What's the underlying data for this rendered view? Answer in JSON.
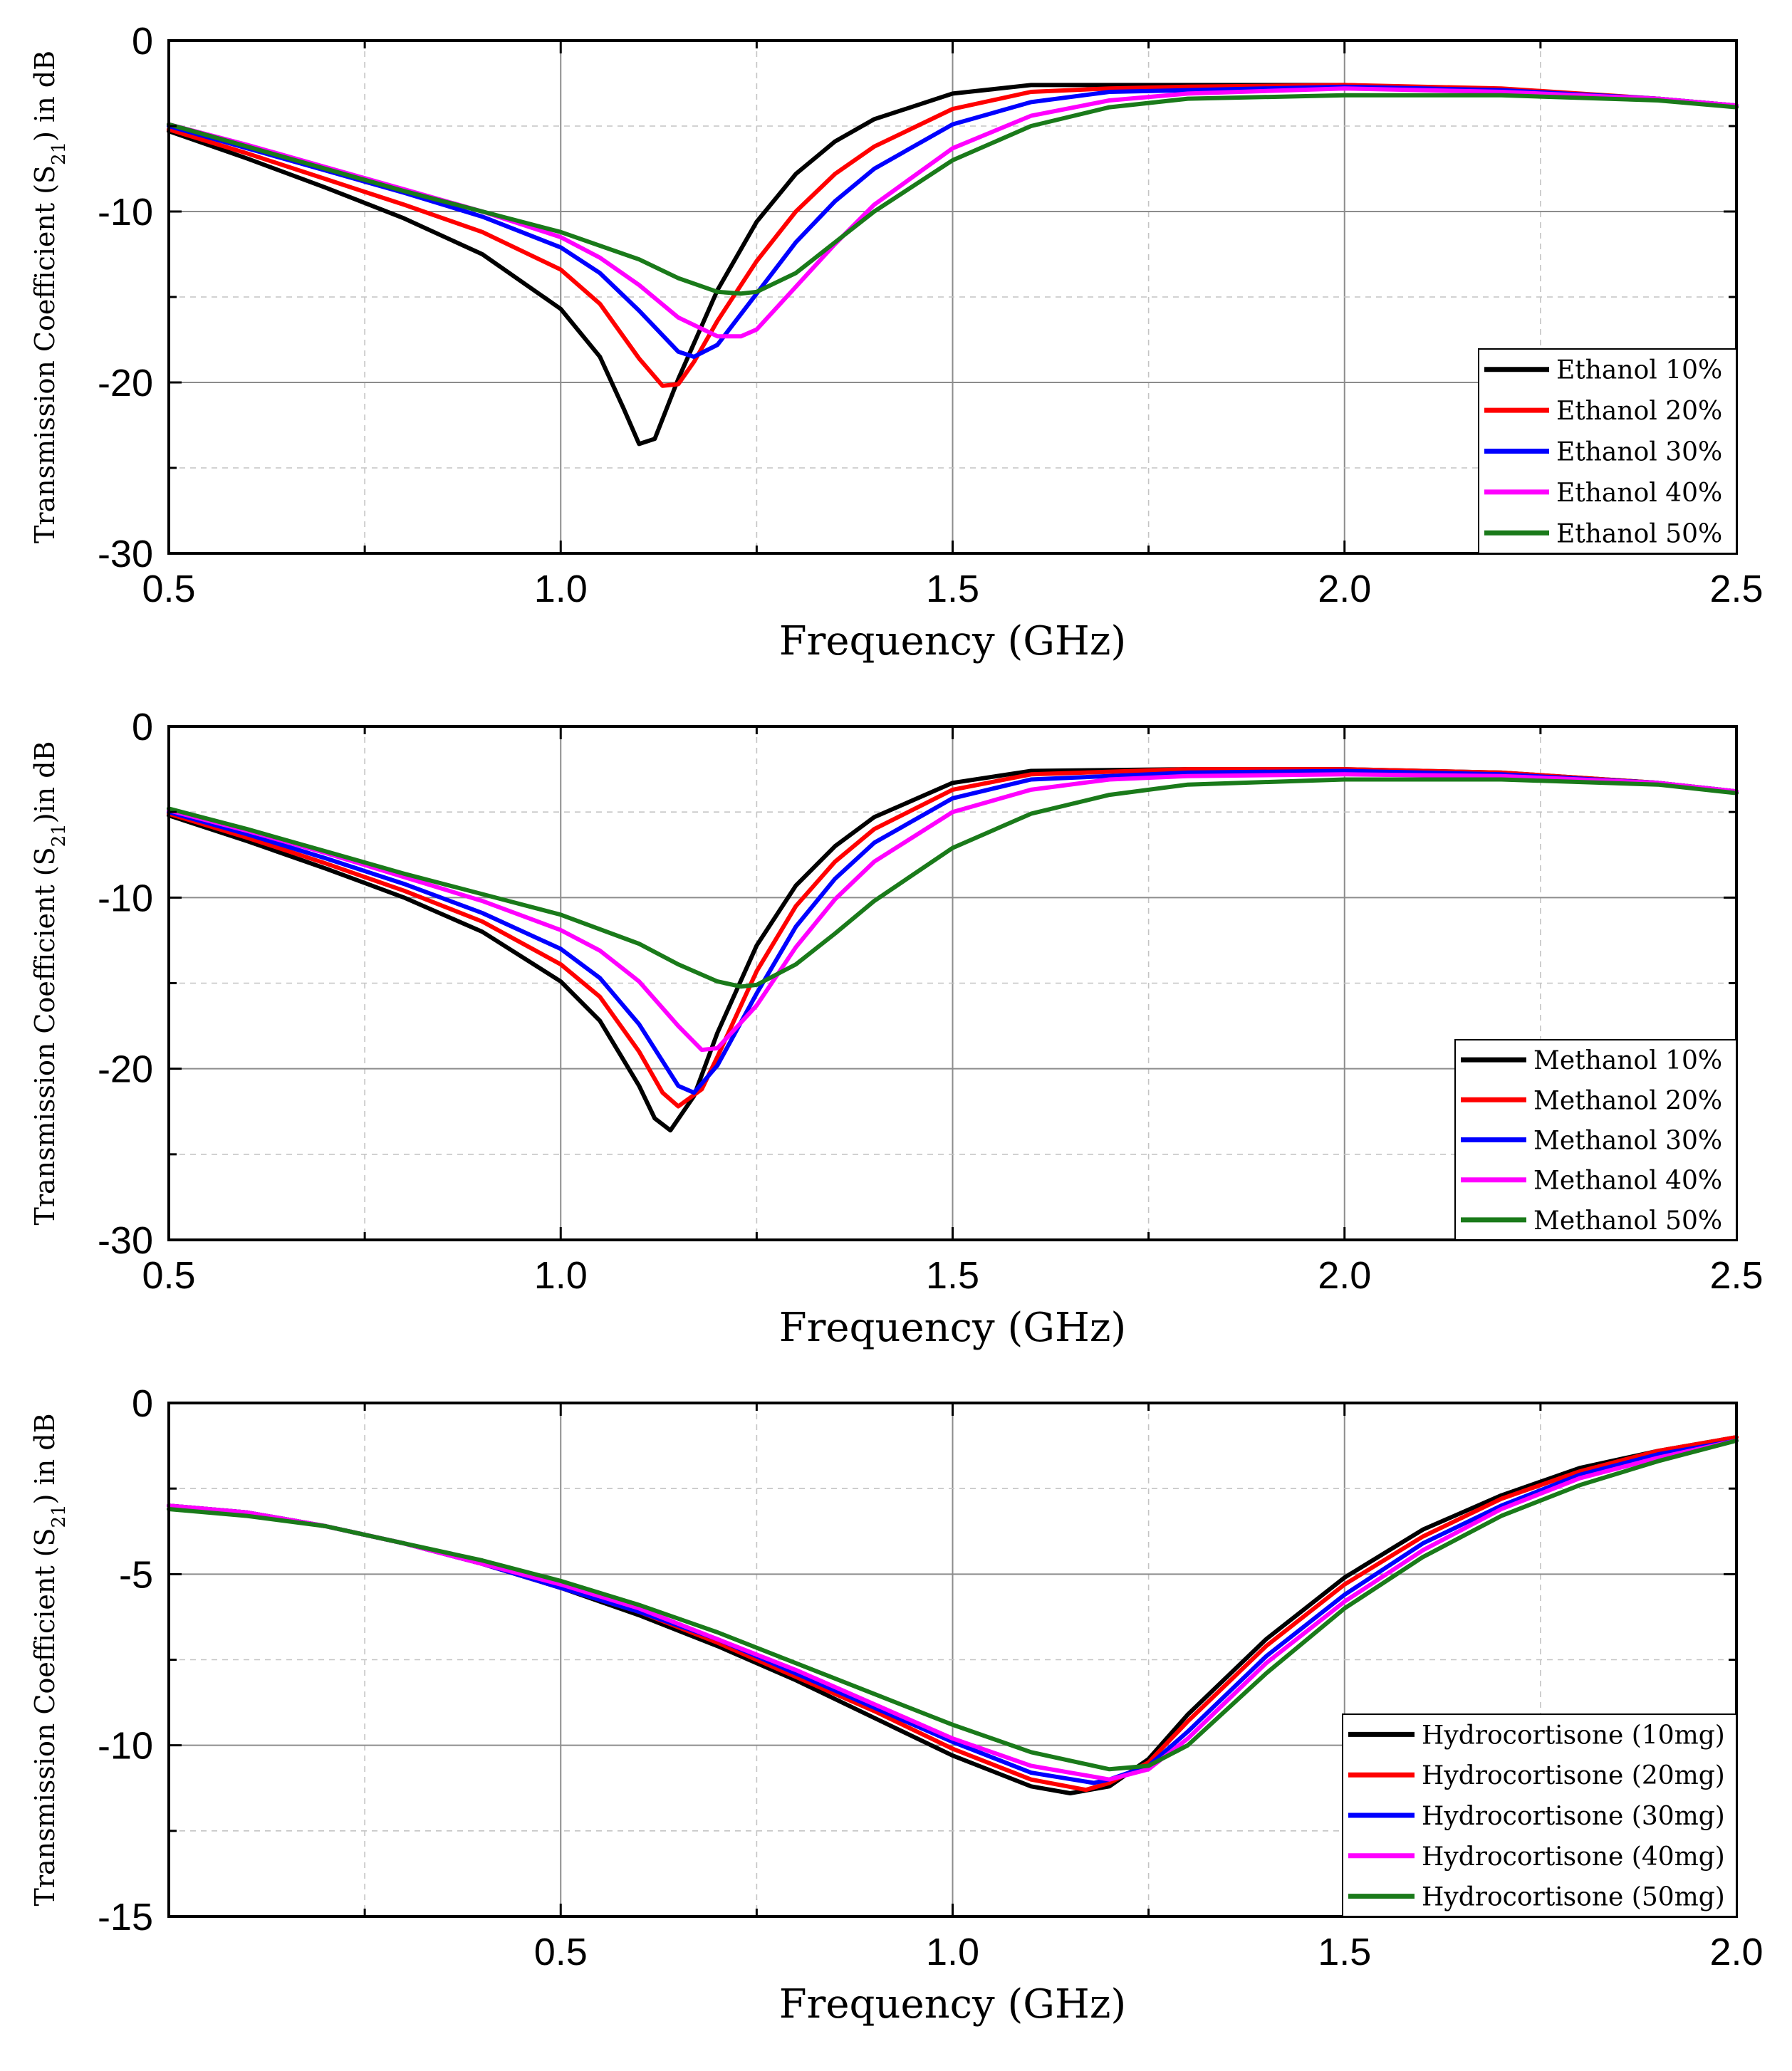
{
  "chart_data": [
    {
      "type": "line",
      "xlabel": "Frequency (GHz)",
      "ylabel_main": "Transmission Coefficient (S",
      "ylabel_sub": "21",
      "ylabel_tail": ") in dB",
      "xlim": [
        0.5,
        2.5
      ],
      "ylim": [
        -30,
        0
      ],
      "xticks": [
        0.5,
        1.0,
        1.5,
        2.0,
        2.5
      ],
      "xtick_labels": [
        "0.5",
        "1.0",
        "1.5",
        "2.0",
        "2.5"
      ],
      "yticks": [
        -30,
        -20,
        -10,
        0
      ],
      "ytick_labels": [
        "-30",
        "-20",
        "-10",
        "0"
      ],
      "legend_position": "bottom-right",
      "grid": true,
      "series": [
        {
          "name": "Ethanol 10%",
          "color": "#000000",
          "x": [
            0.5,
            0.6,
            0.7,
            0.8,
            0.9,
            1.0,
            1.05,
            1.08,
            1.1,
            1.12,
            1.15,
            1.2,
            1.25,
            1.3,
            1.35,
            1.4,
            1.5,
            1.6,
            1.8,
            2.0,
            2.2,
            2.4,
            2.5
          ],
          "y": [
            -5.3,
            -6.9,
            -8.6,
            -10.4,
            -12.5,
            -15.7,
            -18.5,
            -21.5,
            -23.6,
            -23.3,
            -19.8,
            -14.6,
            -10.6,
            -7.8,
            -5.9,
            -4.6,
            -3.1,
            -2.6,
            -2.6,
            -2.6,
            -2.9,
            -3.4,
            -3.8
          ]
        },
        {
          "name": "Ethanol 20%",
          "color": "#ff0000",
          "x": [
            0.5,
            0.6,
            0.7,
            0.8,
            0.9,
            1.0,
            1.05,
            1.1,
            1.13,
            1.15,
            1.17,
            1.2,
            1.25,
            1.3,
            1.35,
            1.4,
            1.5,
            1.6,
            1.7,
            1.8,
            2.0,
            2.2,
            2.4,
            2.5
          ],
          "y": [
            -5.2,
            -6.6,
            -8.1,
            -9.6,
            -11.2,
            -13.4,
            -15.4,
            -18.6,
            -20.2,
            -20.1,
            -18.8,
            -16.4,
            -12.9,
            -10.0,
            -7.8,
            -6.2,
            -4.0,
            -3.0,
            -2.8,
            -2.7,
            -2.6,
            -2.8,
            -3.4,
            -3.8
          ]
        },
        {
          "name": "Ethanol 30%",
          "color": "#0000ff",
          "x": [
            0.5,
            0.6,
            0.7,
            0.8,
            0.9,
            1.0,
            1.05,
            1.1,
            1.15,
            1.17,
            1.2,
            1.25,
            1.3,
            1.35,
            1.4,
            1.5,
            1.6,
            1.7,
            1.8,
            2.0,
            2.2,
            2.4,
            2.5
          ],
          "y": [
            -5.0,
            -6.3,
            -7.6,
            -8.9,
            -10.3,
            -12.1,
            -13.6,
            -15.8,
            -18.2,
            -18.5,
            -17.8,
            -14.8,
            -11.8,
            -9.4,
            -7.5,
            -4.9,
            -3.6,
            -3.0,
            -2.9,
            -2.7,
            -2.9,
            -3.4,
            -3.8
          ]
        },
        {
          "name": "Ethanol 40%",
          "color": "#ff00ff",
          "x": [
            0.5,
            0.6,
            0.7,
            0.8,
            0.9,
            1.0,
            1.05,
            1.1,
            1.15,
            1.2,
            1.23,
            1.25,
            1.3,
            1.35,
            1.4,
            1.5,
            1.6,
            1.7,
            1.8,
            2.0,
            2.2,
            2.4,
            2.5
          ],
          "y": [
            -4.9,
            -6.1,
            -7.4,
            -8.7,
            -10.0,
            -11.5,
            -12.7,
            -14.3,
            -16.2,
            -17.3,
            -17.3,
            -16.9,
            -14.4,
            -11.9,
            -9.6,
            -6.3,
            -4.4,
            -3.5,
            -3.1,
            -2.8,
            -3.0,
            -3.4,
            -3.8
          ]
        },
        {
          "name": "Ethanol 50%",
          "color": "#1a7a1a",
          "x": [
            0.5,
            0.6,
            0.7,
            0.8,
            0.9,
            1.0,
            1.1,
            1.15,
            1.2,
            1.23,
            1.25,
            1.3,
            1.35,
            1.4,
            1.5,
            1.6,
            1.7,
            1.8,
            2.0,
            2.2,
            2.4,
            2.5
          ],
          "y": [
            -4.9,
            -6.2,
            -7.5,
            -8.8,
            -10.0,
            -11.2,
            -12.8,
            -13.9,
            -14.7,
            -14.8,
            -14.7,
            -13.6,
            -11.8,
            -10.0,
            -7.0,
            -5.0,
            -3.9,
            -3.4,
            -3.2,
            -3.2,
            -3.5,
            -3.9
          ]
        }
      ]
    },
    {
      "type": "line",
      "xlabel": "Frequency (GHz)",
      "ylabel_main": "Transmission Coefficient (S",
      "ylabel_sub": "21",
      "ylabel_tail": ")in dB",
      "xlim": [
        0.5,
        2.5
      ],
      "ylim": [
        -30,
        0
      ],
      "xticks": [
        0.5,
        1.0,
        1.5,
        2.0,
        2.5
      ],
      "xtick_labels": [
        "0.5",
        "1.0",
        "1.5",
        "2.0",
        "2.5"
      ],
      "yticks": [
        -30,
        -20,
        -10,
        0
      ],
      "ytick_labels": [
        "-30",
        "-20",
        "-10",
        "0"
      ],
      "legend_position": "bottom-right",
      "grid": true,
      "series": [
        {
          "name": "Methanol 10%",
          "color": "#000000",
          "x": [
            0.5,
            0.6,
            0.7,
            0.8,
            0.9,
            1.0,
            1.05,
            1.1,
            1.12,
            1.14,
            1.17,
            1.2,
            1.25,
            1.3,
            1.35,
            1.4,
            1.5,
            1.6,
            1.8,
            2.0,
            2.2,
            2.4,
            2.5
          ],
          "y": [
            -5.2,
            -6.7,
            -8.3,
            -10.0,
            -12.0,
            -14.9,
            -17.2,
            -21.0,
            -22.9,
            -23.6,
            -21.6,
            -17.9,
            -12.8,
            -9.3,
            -7.0,
            -5.3,
            -3.3,
            -2.6,
            -2.5,
            -2.5,
            -2.7,
            -3.3,
            -3.8
          ]
        },
        {
          "name": "Methanol 20%",
          "color": "#ff0000",
          "x": [
            0.5,
            0.6,
            0.7,
            0.8,
            0.9,
            1.0,
            1.05,
            1.1,
            1.13,
            1.15,
            1.18,
            1.2,
            1.25,
            1.3,
            1.35,
            1.4,
            1.5,
            1.6,
            1.8,
            2.0,
            2.2,
            2.4,
            2.5
          ],
          "y": [
            -5.1,
            -6.5,
            -8.0,
            -9.6,
            -11.4,
            -13.9,
            -15.8,
            -19.0,
            -21.4,
            -22.2,
            -21.2,
            -19.3,
            -14.3,
            -10.5,
            -7.9,
            -6.0,
            -3.7,
            -2.8,
            -2.5,
            -2.5,
            -2.7,
            -3.3,
            -3.8
          ]
        },
        {
          "name": "Methanol 30%",
          "color": "#0000ff",
          "x": [
            0.5,
            0.6,
            0.7,
            0.8,
            0.9,
            1.0,
            1.05,
            1.1,
            1.15,
            1.17,
            1.2,
            1.25,
            1.3,
            1.35,
            1.4,
            1.5,
            1.6,
            1.8,
            2.0,
            2.2,
            2.4,
            2.5
          ],
          "y": [
            -5.0,
            -6.3,
            -7.7,
            -9.2,
            -10.9,
            -13.0,
            -14.7,
            -17.4,
            -21.0,
            -21.4,
            -19.8,
            -15.6,
            -11.7,
            -8.9,
            -6.8,
            -4.2,
            -3.1,
            -2.7,
            -2.6,
            -2.8,
            -3.3,
            -3.8
          ]
        },
        {
          "name": "Methanol 40%",
          "color": "#ff00ff",
          "x": [
            0.5,
            0.6,
            0.7,
            0.8,
            0.9,
            1.0,
            1.05,
            1.1,
            1.15,
            1.18,
            1.2,
            1.25,
            1.3,
            1.35,
            1.4,
            1.5,
            1.6,
            1.7,
            1.8,
            2.0,
            2.2,
            2.4,
            2.5
          ],
          "y": [
            -4.9,
            -6.1,
            -7.4,
            -8.8,
            -10.2,
            -11.9,
            -13.1,
            -14.9,
            -17.5,
            -18.9,
            -18.8,
            -16.3,
            -12.9,
            -10.1,
            -7.9,
            -5.0,
            -3.7,
            -3.1,
            -2.9,
            -2.8,
            -2.9,
            -3.3,
            -3.8
          ]
        },
        {
          "name": "Methanol 50%",
          "color": "#1a7a1a",
          "x": [
            0.5,
            0.6,
            0.7,
            0.8,
            0.9,
            1.0,
            1.1,
            1.15,
            1.2,
            1.23,
            1.25,
            1.3,
            1.35,
            1.4,
            1.5,
            1.6,
            1.7,
            1.8,
            2.0,
            2.2,
            2.4,
            2.5
          ],
          "y": [
            -4.8,
            -6.0,
            -7.3,
            -8.6,
            -9.8,
            -11.0,
            -12.7,
            -13.9,
            -14.9,
            -15.2,
            -15.1,
            -13.9,
            -12.1,
            -10.2,
            -7.1,
            -5.1,
            -4.0,
            -3.4,
            -3.1,
            -3.1,
            -3.4,
            -3.9
          ]
        }
      ]
    },
    {
      "type": "line",
      "xlabel": "Frequency (GHz)",
      "ylabel_main": "Transmission Coefficient (S",
      "ylabel_sub": "21",
      "ylabel_tail": ") in dB",
      "xlim": [
        0.0,
        2.0
      ],
      "ylim": [
        -15,
        0
      ],
      "xticks": [
        0.5,
        1.0,
        1.5,
        2.0
      ],
      "xtick_labels": [
        "0.5",
        "1.0",
        "1.5",
        "2.0"
      ],
      "yticks": [
        -15,
        -10,
        -5,
        0
      ],
      "ytick_labels": [
        "-15",
        "-10",
        "-5",
        "0"
      ],
      "legend_position": "bottom-right",
      "grid": true,
      "series": [
        {
          "name": "Hydrocortisone (10mg)",
          "color": "#000000",
          "x": [
            0.0,
            0.1,
            0.2,
            0.3,
            0.4,
            0.5,
            0.6,
            0.7,
            0.8,
            0.9,
            1.0,
            1.1,
            1.15,
            1.2,
            1.25,
            1.3,
            1.4,
            1.5,
            1.6,
            1.7,
            1.8,
            1.9,
            2.0
          ],
          "y": [
            -3.0,
            -3.2,
            -3.6,
            -4.1,
            -4.7,
            -5.4,
            -6.2,
            -7.1,
            -8.1,
            -9.2,
            -10.3,
            -11.2,
            -11.4,
            -11.2,
            -10.4,
            -9.1,
            -6.9,
            -5.1,
            -3.7,
            -2.7,
            -1.9,
            -1.4,
            -1.0
          ]
        },
        {
          "name": "Hydrocortisone (20mg)",
          "color": "#ff0000",
          "x": [
            0.0,
            0.1,
            0.2,
            0.3,
            0.4,
            0.5,
            0.6,
            0.7,
            0.8,
            0.9,
            1.0,
            1.1,
            1.17,
            1.2,
            1.25,
            1.3,
            1.4,
            1.5,
            1.6,
            1.7,
            1.8,
            1.9,
            2.0
          ],
          "y": [
            -3.0,
            -3.2,
            -3.6,
            -4.1,
            -4.7,
            -5.4,
            -6.1,
            -7.0,
            -8.0,
            -9.0,
            -10.1,
            -11.0,
            -11.3,
            -11.1,
            -10.5,
            -9.3,
            -7.1,
            -5.3,
            -3.9,
            -2.8,
            -2.0,
            -1.4,
            -1.0
          ]
        },
        {
          "name": "Hydrocortisone (30mg)",
          "color": "#0000ff",
          "x": [
            0.0,
            0.1,
            0.2,
            0.3,
            0.4,
            0.5,
            0.6,
            0.7,
            0.8,
            0.9,
            1.0,
            1.1,
            1.18,
            1.2,
            1.25,
            1.3,
            1.4,
            1.5,
            1.6,
            1.7,
            1.8,
            1.9,
            2.0
          ],
          "y": [
            -3.0,
            -3.2,
            -3.6,
            -4.1,
            -4.7,
            -5.4,
            -6.1,
            -6.9,
            -7.9,
            -8.9,
            -9.9,
            -10.8,
            -11.1,
            -11.0,
            -10.6,
            -9.6,
            -7.4,
            -5.6,
            -4.1,
            -3.0,
            -2.1,
            -1.5,
            -1.1
          ]
        },
        {
          "name": "Hydrocortisone (40mg)",
          "color": "#ff00ff",
          "x": [
            0.0,
            0.1,
            0.2,
            0.3,
            0.4,
            0.5,
            0.6,
            0.7,
            0.8,
            0.9,
            1.0,
            1.1,
            1.2,
            1.25,
            1.3,
            1.4,
            1.5,
            1.6,
            1.7,
            1.8,
            1.9,
            2.0
          ],
          "y": [
            -3.0,
            -3.2,
            -3.6,
            -4.1,
            -4.7,
            -5.3,
            -6.0,
            -6.9,
            -7.8,
            -8.8,
            -9.8,
            -10.6,
            -11.0,
            -10.7,
            -9.8,
            -7.6,
            -5.8,
            -4.3,
            -3.1,
            -2.2,
            -1.6,
            -1.1
          ]
        },
        {
          "name": "Hydrocortisone (50mg)",
          "color": "#1a7a1a",
          "x": [
            0.0,
            0.1,
            0.2,
            0.3,
            0.4,
            0.5,
            0.6,
            0.7,
            0.8,
            0.9,
            1.0,
            1.1,
            1.2,
            1.25,
            1.3,
            1.4,
            1.5,
            1.6,
            1.7,
            1.8,
            1.9,
            2.0
          ],
          "y": [
            -3.1,
            -3.3,
            -3.6,
            -4.1,
            -4.6,
            -5.2,
            -5.9,
            -6.7,
            -7.6,
            -8.5,
            -9.4,
            -10.2,
            -10.7,
            -10.6,
            -10.0,
            -7.9,
            -6.0,
            -4.5,
            -3.3,
            -2.4,
            -1.7,
            -1.1
          ]
        }
      ]
    }
  ]
}
